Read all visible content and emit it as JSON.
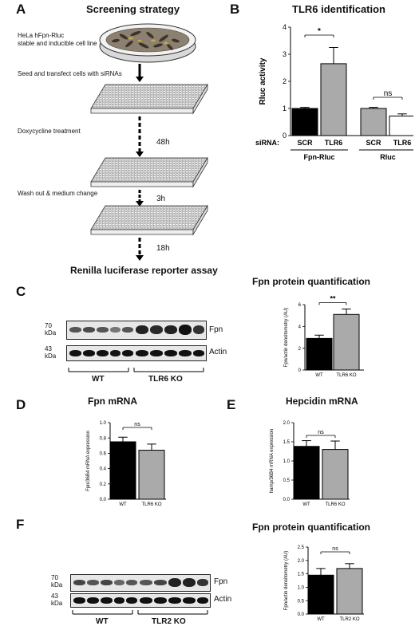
{
  "panels": {
    "a": {
      "letter": "A",
      "title": "Screening strategy",
      "cell_line_line1": "HeLa hFpn-Rluc",
      "cell_line_line2": "stable and inducible cell line",
      "step1": "Seed and transfect cells with siRNAs",
      "step2": "Doxycycline treatment",
      "time1": "48h",
      "step3": "Wash out & medium change",
      "time2": "3h",
      "time3": "18h",
      "final": "Renilla luciferase reporter assay"
    },
    "b": {
      "letter": "B",
      "title": "TLR6 identification"
    },
    "c": {
      "letter": "C",
      "title": "Fpn protein quantification",
      "marker1": "70",
      "marker1_unit": "kDa",
      "marker2": "43",
      "marker2_unit": "kDa",
      "band1": "Fpn",
      "band2": "Actin",
      "group1": "WT",
      "group2": "TLR6 KO"
    },
    "d": {
      "letter": "D",
      "title": "Fpn mRNA"
    },
    "e": {
      "letter": "E",
      "title": "Hepcidin mRNA"
    },
    "f": {
      "letter": "F",
      "title": "Fpn protein quantification",
      "marker1": "70",
      "marker1_unit": "kDa",
      "marker2": "43",
      "marker2_unit": "kDa",
      "band1": "Fpn",
      "band2": "Actin",
      "group1": "WT",
      "group2": "TLR2 KO"
    }
  },
  "chart_data": [
    {
      "id": "B",
      "type": "bar",
      "title": "TLR6 identification",
      "ylabel": "Rluc activity",
      "ylim": [
        0,
        4
      ],
      "yticks": [
        0,
        1,
        2,
        3,
        4
      ],
      "row_label": "siRNA:",
      "categories": [
        "SCR",
        "TLR6",
        "SCR",
        "TLR6"
      ],
      "groups": [
        {
          "label": "Fpn-Rluc",
          "members": [
            0,
            1
          ]
        },
        {
          "label": "Rluc",
          "members": [
            2,
            3
          ]
        }
      ],
      "values": [
        1.0,
        2.65,
        1.0,
        0.72
      ],
      "errors": [
        0.04,
        0.6,
        0.04,
        0.08
      ],
      "colors": [
        "#000000",
        "#aaaaaa",
        "#aaaaaa",
        "#ffffff"
      ],
      "significance": [
        {
          "between": [
            0,
            1
          ],
          "label": "*"
        },
        {
          "between": [
            2,
            3
          ],
          "label": "ns"
        }
      ]
    },
    {
      "id": "C",
      "type": "bar",
      "ylabel": "Fpn/actin densitometry (AU)",
      "ylim": [
        0,
        6
      ],
      "yticks": [
        0,
        2,
        4,
        6
      ],
      "categories": [
        "WT",
        "TLR6 KO"
      ],
      "values": [
        2.9,
        5.1
      ],
      "errors": [
        0.3,
        0.5
      ],
      "colors": [
        "#000000",
        "#aaaaaa"
      ],
      "significance": [
        {
          "between": [
            0,
            1
          ],
          "label": "**"
        }
      ]
    },
    {
      "id": "D",
      "type": "bar",
      "ylabel": "Fpn/36B4 mRNA expression",
      "ylim": [
        0,
        1.0
      ],
      "yticks": [
        0.0,
        0.2,
        0.4,
        0.6,
        0.8,
        1.0
      ],
      "categories": [
        "WT",
        "TLR6 KO"
      ],
      "values": [
        0.75,
        0.64
      ],
      "errors": [
        0.06,
        0.08
      ],
      "colors": [
        "#000000",
        "#aaaaaa"
      ],
      "significance": [
        {
          "between": [
            0,
            1
          ],
          "label": "ns"
        }
      ]
    },
    {
      "id": "E",
      "type": "bar",
      "ylabel": "hamp/36B4 mRNA expression",
      "ylim": [
        0,
        2.0
      ],
      "yticks": [
        0.0,
        0.5,
        1.0,
        1.5,
        2.0
      ],
      "categories": [
        "WT",
        "TLR6 KO"
      ],
      "values": [
        1.38,
        1.3
      ],
      "errors": [
        0.15,
        0.22
      ],
      "colors": [
        "#000000",
        "#aaaaaa"
      ],
      "significance": [
        {
          "between": [
            0,
            1
          ],
          "label": "ns"
        }
      ]
    },
    {
      "id": "F",
      "type": "bar",
      "ylabel": "Fpn/actin densitometry (AU)",
      "ylim": [
        0,
        2.5
      ],
      "yticks": [
        0.0,
        0.5,
        1.0,
        1.5,
        2.0,
        2.5
      ],
      "categories": [
        "WT",
        "TLR2 KO"
      ],
      "values": [
        1.45,
        1.7
      ],
      "errors": [
        0.25,
        0.18
      ],
      "colors": [
        "#000000",
        "#aaaaaa"
      ],
      "significance": [
        {
          "between": [
            0,
            1
          ],
          "label": "ns"
        }
      ]
    }
  ]
}
